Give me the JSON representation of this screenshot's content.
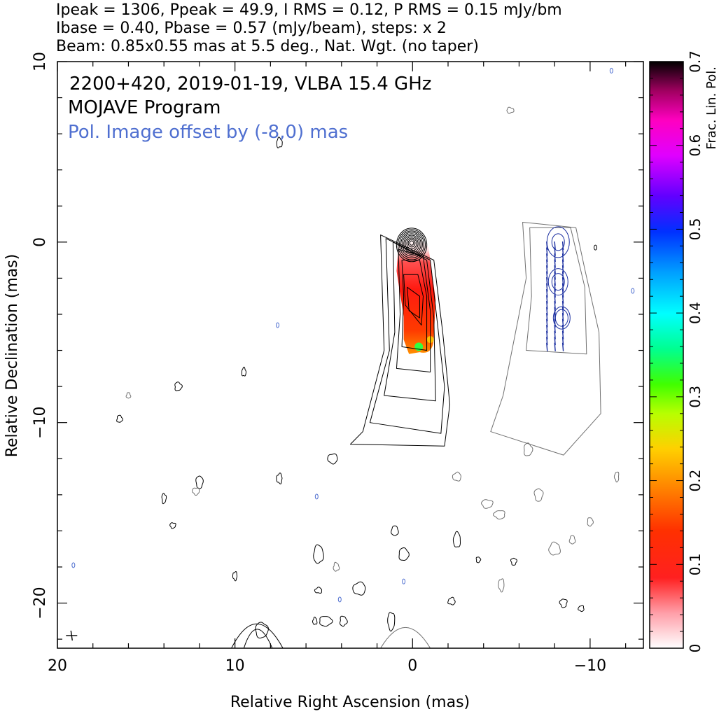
{
  "header": {
    "line1": "Ipeak = 1306, Ppeak = 49.9, I RMS = 0.12, P RMS = 0.15 mJy/bm",
    "line2": "Ibase = 0.40, Pbase = 0.57 (mJy/beam), steps: x 2",
    "line3": "Beam: 0.85x0.55 mas at 5.5 deg., Nat. Wgt. (no taper)"
  },
  "annotations": {
    "source": "2200+420, 2019-01-19, VLBA 15.4 GHz",
    "program": "MOJAVE Program",
    "offset_note": "Pol. Image offset by (-8,0) mas"
  },
  "colors": {
    "offset_note": "#4f6fd0",
    "stokes_i_contour": "#000000",
    "pol_offset_contour": "#707070",
    "evpa_ticks": "#1a2ea0"
  },
  "chart_data": {
    "type": "heatmap",
    "xlabel": "Relative Right Ascension (mas)",
    "ylabel": "Relative Declination (mas)",
    "xlim": [
      20,
      -13
    ],
    "ylim": [
      -22.5,
      10
    ],
    "xticks": [
      20,
      10,
      0,
      -10
    ],
    "yticks": [
      10,
      0,
      -10,
      -20
    ],
    "colorbar": {
      "label": "Frac. Lin. Pol.",
      "range": [
        0,
        0.7
      ],
      "ticks": [
        "0",
        "0.1",
        "0.2",
        "0.3",
        "0.4",
        "0.5",
        "0.6",
        "0.7"
      ]
    },
    "pol_offset_mas": [
      -8,
      0
    ],
    "beam_marker_mas": [
      19.2,
      -21.8
    ]
  }
}
